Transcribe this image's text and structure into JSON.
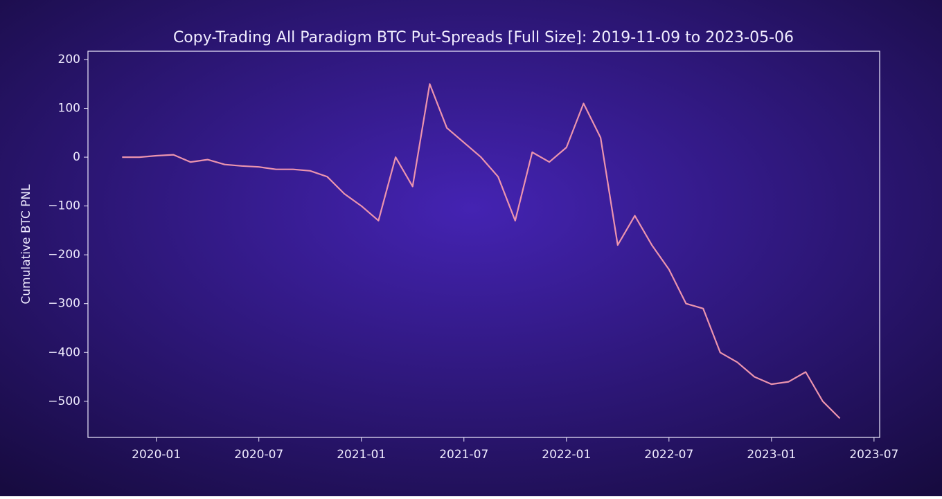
{
  "chart_data": {
    "type": "line",
    "title": "Copy-Trading All Paradigm BTC Put-Spreads [Full Size]: 2019-11-09 to 2023-05-06",
    "y_label": "Cumulative BTC PNL",
    "x": [
      "2019-11",
      "2019-12",
      "2020-01",
      "2020-02",
      "2020-03",
      "2020-04",
      "2020-05",
      "2020-06",
      "2020-07",
      "2020-08",
      "2020-09",
      "2020-10",
      "2020-11",
      "2020-12",
      "2021-01",
      "2021-02",
      "2021-03",
      "2021-04",
      "2021-05",
      "2021-06",
      "2021-07",
      "2021-08",
      "2021-09",
      "2021-10",
      "2021-11",
      "2021-12",
      "2022-01",
      "2022-02",
      "2022-03",
      "2022-04",
      "2022-05",
      "2022-06",
      "2022-07",
      "2022-08",
      "2022-09",
      "2022-10",
      "2022-11",
      "2022-12",
      "2023-01",
      "2023-02",
      "2023-03",
      "2023-04",
      "2023-05"
    ],
    "series": [
      {
        "name": "Cumulative BTC PNL",
        "color": "#ec94ae",
        "values": [
          0,
          0,
          3,
          5,
          -10,
          -5,
          -15,
          -18,
          -20,
          -25,
          -25,
          -28,
          -40,
          -75,
          -100,
          -130,
          0,
          -60,
          150,
          60,
          30,
          0,
          -40,
          -130,
          10,
          -10,
          20,
          110,
          40,
          -180,
          -120,
          -180,
          -230,
          -300,
          -310,
          -400,
          -420,
          -450,
          -465,
          -460,
          -440,
          -500,
          -535
        ]
      }
    ],
    "xlim": [
      "2019-09",
      "2023-07"
    ],
    "xticks": [
      "2020-01",
      "2020-07",
      "2021-01",
      "2021-07",
      "2022-01",
      "2022-07",
      "2023-01",
      "2023-07"
    ],
    "ylim": [
      -574,
      217
    ],
    "yticks": [
      {
        "value": -500,
        "label": "−500"
      },
      {
        "value": -400,
        "label": "−400"
      },
      {
        "value": -300,
        "label": "−300"
      },
      {
        "value": -200,
        "label": "−200"
      },
      {
        "value": -100,
        "label": "−100"
      },
      0,
      100,
      200
    ],
    "grid": false
  }
}
